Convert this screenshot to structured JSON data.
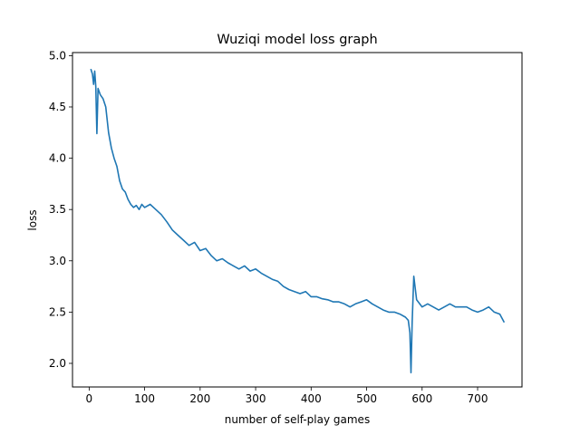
{
  "chart_data": {
    "type": "line",
    "title": "Wuziqi model loss graph",
    "xlabel": "number of self-play games",
    "ylabel": "loss",
    "xlim": [
      -30,
      780
    ],
    "ylim": [
      1.77,
      5.03
    ],
    "xticks": [
      0,
      100,
      200,
      300,
      400,
      500,
      600,
      700
    ],
    "yticks": [
      2.0,
      2.5,
      3.0,
      3.5,
      4.0,
      4.5,
      5.0
    ],
    "xtick_labels": [
      "0",
      "100",
      "200",
      "300",
      "400",
      "500",
      "600",
      "700"
    ],
    "ytick_labels": [
      "2.0",
      "2.5",
      "3.0",
      "3.5",
      "4.0",
      "4.5",
      "5.0"
    ],
    "grid": false,
    "series": [
      {
        "color": "#1f77b4",
        "x": [
          3,
          6,
          8,
          10,
          12,
          14,
          16,
          20,
          25,
          30,
          35,
          40,
          45,
          50,
          55,
          60,
          65,
          70,
          75,
          80,
          85,
          90,
          95,
          100,
          110,
          120,
          130,
          140,
          150,
          160,
          170,
          180,
          190,
          200,
          210,
          220,
          230,
          240,
          250,
          260,
          270,
          280,
          290,
          300,
          310,
          320,
          330,
          340,
          350,
          360,
          370,
          380,
          390,
          400,
          410,
          420,
          430,
          440,
          450,
          460,
          470,
          480,
          490,
          500,
          510,
          520,
          530,
          540,
          550,
          560,
          570,
          575,
          578,
          580,
          582,
          585,
          590,
          600,
          610,
          620,
          630,
          640,
          650,
          660,
          670,
          680,
          690,
          700,
          710,
          720,
          730,
          740,
          748
        ],
        "y": [
          4.87,
          4.82,
          4.72,
          4.85,
          4.7,
          4.24,
          4.68,
          4.62,
          4.58,
          4.5,
          4.25,
          4.1,
          4.0,
          3.92,
          3.78,
          3.7,
          3.67,
          3.6,
          3.55,
          3.52,
          3.54,
          3.5,
          3.55,
          3.52,
          3.55,
          3.5,
          3.45,
          3.38,
          3.3,
          3.25,
          3.2,
          3.15,
          3.18,
          3.1,
          3.12,
          3.05,
          3.0,
          3.02,
          2.98,
          2.95,
          2.92,
          2.95,
          2.9,
          2.92,
          2.88,
          2.85,
          2.82,
          2.8,
          2.75,
          2.72,
          2.7,
          2.68,
          2.7,
          2.65,
          2.65,
          2.63,
          2.62,
          2.6,
          2.6,
          2.58,
          2.55,
          2.58,
          2.6,
          2.62,
          2.58,
          2.55,
          2.52,
          2.5,
          2.5,
          2.48,
          2.45,
          2.42,
          2.3,
          1.91,
          2.4,
          2.85,
          2.62,
          2.55,
          2.58,
          2.55,
          2.52,
          2.55,
          2.58,
          2.55,
          2.55,
          2.55,
          2.52,
          2.5,
          2.52,
          2.55,
          2.5,
          2.48,
          2.4
        ]
      }
    ]
  }
}
